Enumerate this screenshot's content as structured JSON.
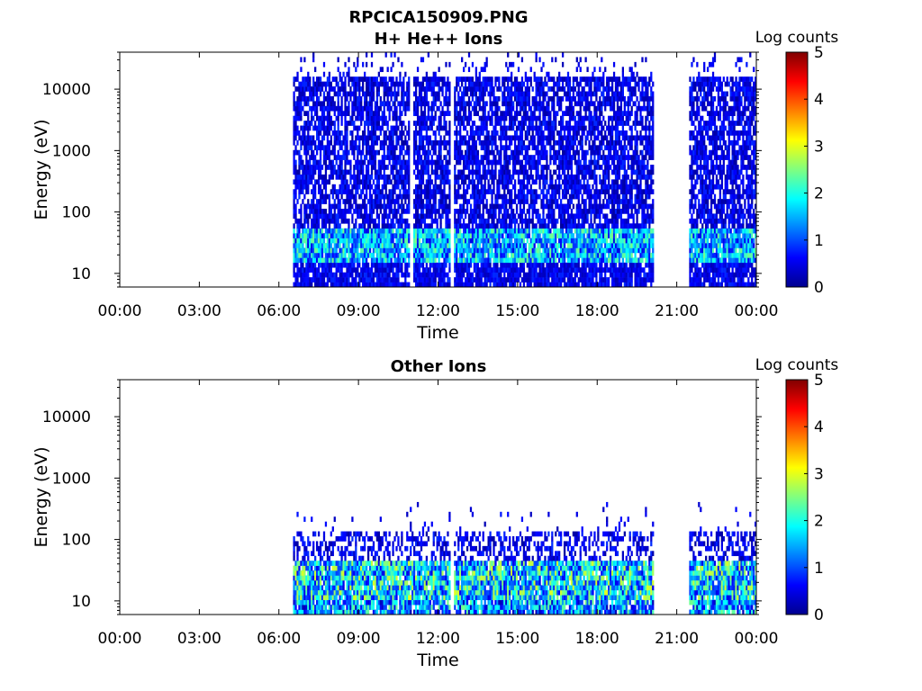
{
  "figure": {
    "title": "RPCICA150909.PNG"
  },
  "chart_data": [
    {
      "type": "heatmap",
      "title": "H+ He++ Ions",
      "xlabel": "Time",
      "ylabel": "Energy (eV)",
      "x_tick_labels": [
        "00:00",
        "03:00",
        "06:00",
        "09:00",
        "12:00",
        "15:00",
        "18:00",
        "21:00",
        "00:00"
      ],
      "x_ticks_hours": [
        0,
        3,
        6,
        9,
        12,
        15,
        18,
        21,
        24
      ],
      "xlim_hours": [
        0,
        24
      ],
      "yscale": "log",
      "ylim": [
        6,
        40000
      ],
      "y_ticks": [
        10,
        100,
        1000,
        10000
      ],
      "y_tick_labels": [
        "10",
        "100",
        "1000",
        "10000"
      ],
      "colorbar": {
        "label": "Log counts",
        "range": [
          0,
          5
        ],
        "ticks": [
          "0",
          "1",
          "2",
          "3",
          "4",
          "5"
        ],
        "colormap": "jet"
      },
      "data_intervals_hours": [
        [
          6.55,
          10.95
        ],
        [
          11.05,
          12.45
        ],
        [
          12.6,
          20.15
        ],
        [
          21.5,
          24.0
        ]
      ],
      "energy_cutoff_eV": 16000,
      "peak_log_counts": 2.5,
      "low_energy_peak_eV": [
        15,
        50
      ]
    },
    {
      "type": "heatmap",
      "title": "Other Ions",
      "xlabel": "Time",
      "ylabel": "Energy (eV)",
      "x_tick_labels": [
        "00:00",
        "03:00",
        "06:00",
        "09:00",
        "12:00",
        "15:00",
        "18:00",
        "21:00",
        "00:00"
      ],
      "x_ticks_hours": [
        0,
        3,
        6,
        9,
        12,
        15,
        18,
        21,
        24
      ],
      "xlim_hours": [
        0,
        24
      ],
      "yscale": "log",
      "ylim": [
        6,
        40000
      ],
      "y_ticks": [
        10,
        100,
        1000,
        10000
      ],
      "y_tick_labels": [
        "10",
        "100",
        "1000",
        "10000"
      ],
      "colorbar": {
        "label": "Log counts",
        "range": [
          0,
          5
        ],
        "ticks": [
          "0",
          "1",
          "2",
          "3",
          "4",
          "5"
        ],
        "colormap": "jet"
      },
      "data_intervals_hours": [
        [
          6.55,
          12.45
        ],
        [
          12.6,
          20.15
        ],
        [
          21.5,
          24.0
        ]
      ],
      "energy_cutoff_eV": 130,
      "peak_log_counts": 3.0,
      "low_energy_peak_eV": [
        10,
        45
      ]
    }
  ]
}
